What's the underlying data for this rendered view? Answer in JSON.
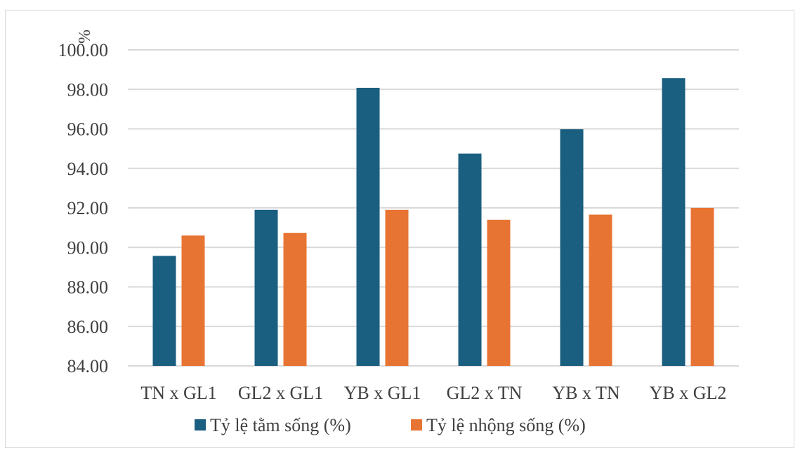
{
  "chart_data": {
    "type": "bar",
    "unit_label": "%",
    "categories": [
      "TN x GL1",
      "GL2 x GL1",
      "YB x GL1",
      "GL2 x TN",
      "YB x TN",
      "YB x GL2"
    ],
    "series": [
      {
        "name": "Tỷ lệ tằm sống (%)",
        "color": "#1a5e80",
        "values": [
          89.57,
          91.9,
          98.08,
          94.75,
          95.98,
          98.57
        ]
      },
      {
        "name": "Tỷ lệ nhộng sống (%)",
        "color": "#e87433",
        "values": [
          90.6,
          90.73,
          91.9,
          91.4,
          91.66,
          92.0
        ]
      }
    ],
    "ylim": [
      84,
      100
    ],
    "yticks": [
      "84.00",
      "86.00",
      "88.00",
      "90.00",
      "92.00",
      "94.00",
      "96.00",
      "98.00",
      "100.00"
    ],
    "grid": true,
    "legend_position": "bottom"
  }
}
